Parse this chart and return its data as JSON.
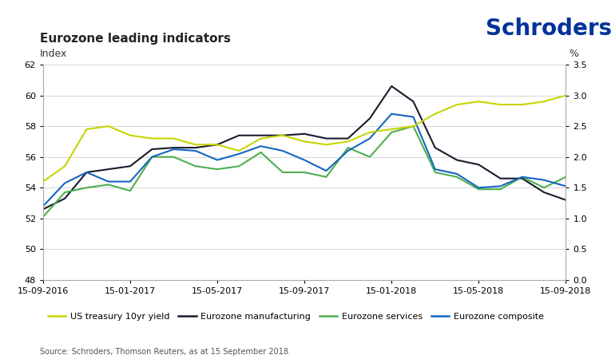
{
  "title": "Eurozone leading indicators",
  "logo_text": "Schroders",
  "ylabel_left": "Index",
  "ylabel_right": "%",
  "source_text": "Source: Schroders, Thomson Reuters, as at 15 September 2018.",
  "ylim_left": [
    48,
    62
  ],
  "ylim_right": [
    0.0,
    3.5
  ],
  "yticks_left": [
    48,
    50,
    52,
    54,
    56,
    58,
    60,
    62
  ],
  "yticks_right": [
    0.0,
    0.5,
    1.0,
    1.5,
    2.0,
    2.5,
    3.0,
    3.5
  ],
  "xtick_labels": [
    "15-09-2016",
    "15-01-2017",
    "15-05-2017",
    "15-09-2017",
    "15-01-2018",
    "15-05-2018",
    "15-09-2018"
  ],
  "us_treasury": {
    "label": "US treasury 10yr yield",
    "color": "#c8d400",
    "x": [
      0,
      1,
      2,
      3,
      4,
      5,
      6,
      7,
      8,
      9,
      10,
      11,
      12,
      13,
      14,
      15,
      16,
      17,
      18,
      19,
      20,
      21,
      22,
      23,
      24
    ],
    "y": [
      1.6,
      1.85,
      2.45,
      2.5,
      2.35,
      2.3,
      2.3,
      2.2,
      2.2,
      2.1,
      2.3,
      2.35,
      2.25,
      2.2,
      2.25,
      2.4,
      2.45,
      2.5,
      2.7,
      2.85,
      2.9,
      2.85,
      2.85,
      2.9,
      3.0
    ]
  },
  "ez_manufacturing": {
    "label": "Eurozone manufacturing",
    "color": "#1a1a2e",
    "x": [
      0,
      1,
      2,
      3,
      4,
      5,
      6,
      7,
      8,
      9,
      10,
      11,
      12,
      13,
      14,
      15,
      16,
      17,
      18,
      19,
      20,
      21,
      22,
      23,
      24
    ],
    "y": [
      52.6,
      53.3,
      55.0,
      55.2,
      55.4,
      56.5,
      56.6,
      56.6,
      56.8,
      57.4,
      57.4,
      57.4,
      57.5,
      57.2,
      57.2,
      58.5,
      60.6,
      59.6,
      56.6,
      55.8,
      55.5,
      54.6,
      54.6,
      53.7,
      53.2
    ]
  },
  "ez_services": {
    "label": "Eurozone services",
    "color": "#4caf50",
    "x": [
      0,
      1,
      2,
      3,
      4,
      5,
      6,
      7,
      8,
      9,
      10,
      11,
      12,
      13,
      14,
      15,
      16,
      17,
      18,
      19,
      20,
      21,
      22,
      23,
      24
    ],
    "y": [
      52.1,
      53.7,
      54.0,
      54.2,
      53.8,
      56.0,
      56.0,
      55.4,
      55.2,
      55.4,
      56.3,
      55.0,
      55.0,
      54.7,
      56.6,
      56.0,
      57.6,
      58.0,
      55.0,
      54.7,
      53.9,
      53.9,
      54.7,
      54.0,
      54.7
    ]
  },
  "ez_composite": {
    "label": "Eurozone composite",
    "color": "#1565c0",
    "x": [
      0,
      1,
      2,
      3,
      4,
      5,
      6,
      7,
      8,
      9,
      10,
      11,
      12,
      13,
      14,
      15,
      16,
      17,
      18,
      19,
      20,
      21,
      22,
      23,
      24
    ],
    "y": [
      52.8,
      54.3,
      55.0,
      54.4,
      54.4,
      56.0,
      56.5,
      56.4,
      55.8,
      56.2,
      56.7,
      56.4,
      55.8,
      55.1,
      56.4,
      57.2,
      58.8,
      58.6,
      55.2,
      54.9,
      54.0,
      54.1,
      54.7,
      54.5,
      54.1
    ]
  },
  "background_color": "#ffffff",
  "grid_color": "#d0d0d0",
  "title_fontsize": 11,
  "axis_label_fontsize": 9,
  "tick_fontsize": 8,
  "legend_fontsize": 8,
  "logo_fontsize": 20,
  "logo_color": "#003399"
}
